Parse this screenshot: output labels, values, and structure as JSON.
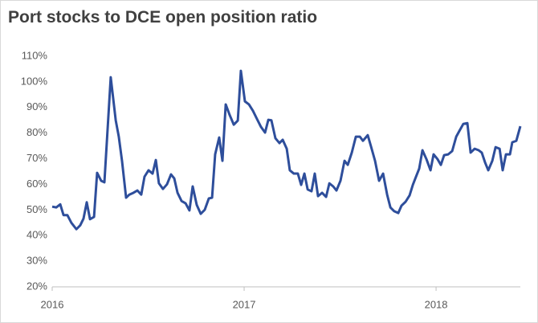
{
  "chart_data": {
    "type": "line",
    "title": "Port stocks to DCE open position ratio",
    "x": [
      2016.0,
      2016.021,
      2016.042,
      2016.059,
      2016.079,
      2016.1,
      2016.126,
      2016.146,
      2016.163,
      2016.18,
      2016.197,
      2016.218,
      2016.234,
      2016.255,
      2016.272,
      2016.305,
      2016.331,
      2016.347,
      2016.364,
      2016.385,
      2016.402,
      2016.423,
      2016.444,
      2016.464,
      2016.481,
      2016.502,
      2016.523,
      2016.54,
      2016.556,
      2016.577,
      2016.598,
      2016.619,
      2016.636,
      2016.653,
      2016.674,
      2016.695,
      2016.715,
      2016.732,
      2016.753,
      2016.774,
      2016.795,
      2016.816,
      2016.833,
      2016.849,
      2016.87,
      2016.887,
      2016.904,
      2016.925,
      2016.946,
      2016.967,
      2016.983,
      2017.004,
      2017.025,
      2017.046,
      2017.067,
      2017.088,
      2017.109,
      2017.126,
      2017.142,
      2017.163,
      2017.184,
      2017.201,
      2017.222,
      2017.238,
      2017.259,
      2017.28,
      2017.297,
      2017.314,
      2017.331,
      2017.351,
      2017.368,
      2017.385,
      2017.406,
      2017.427,
      2017.444,
      2017.464,
      2017.481,
      2017.502,
      2017.523,
      2017.54,
      2017.561,
      2017.582,
      2017.603,
      2017.619,
      2017.644,
      2017.661,
      2017.682,
      2017.703,
      2017.724,
      2017.745,
      2017.762,
      2017.782,
      2017.803,
      2017.82,
      2017.841,
      2017.862,
      2017.879,
      2017.895,
      2017.912,
      2017.929,
      2017.95,
      2017.971,
      2017.987,
      2018.008,
      2018.025,
      2018.042,
      2018.063,
      2018.084,
      2018.105,
      2018.121,
      2018.142,
      2018.163,
      2018.18,
      2018.201,
      2018.222,
      2018.238,
      2018.255,
      2018.272,
      2018.293,
      2018.31,
      2018.331,
      2018.347,
      2018.364,
      2018.385,
      2018.397,
      2018.418,
      2018.439
    ],
    "series": [
      {
        "name": "Port stocks to DCE open position ratio",
        "color": "#2e4e9b",
        "values": [
          51.3,
          51,
          52.2,
          48,
          48,
          45,
          42.5,
          44,
          46.6,
          53,
          46.4,
          47.3,
          64.5,
          61.4,
          60.8,
          101.8,
          85,
          78.6,
          69,
          54.8,
          56,
          56.7,
          57.6,
          56,
          63,
          65.5,
          64.2,
          69.5,
          60.4,
          58.2,
          60,
          63.9,
          62.3,
          56.7,
          53.5,
          52.6,
          49.8,
          59.2,
          52,
          48.5,
          50.1,
          54.5,
          54.8,
          71.7,
          78.3,
          69.2,
          91.2,
          87,
          83.3,
          84.9,
          104.3,
          92.4,
          91.2,
          88.7,
          85.5,
          82.4,
          80.2,
          85.2,
          85,
          78,
          76.1,
          77.4,
          73.9,
          65.5,
          64.2,
          64.2,
          59.8,
          64.2,
          58,
          57.3,
          64.2,
          55.4,
          56.7,
          55.1,
          60.4,
          59.2,
          57.6,
          61.4,
          69.2,
          67.6,
          72.4,
          78.6,
          78.6,
          77,
          79.2,
          74.8,
          69.2,
          61.4,
          64.2,
          56,
          51,
          49.5,
          48.8,
          51.7,
          53.2,
          55.7,
          59.8,
          62.9,
          66.1,
          73.3,
          69.8,
          65.5,
          71.7,
          69.8,
          67.6,
          71.4,
          71.7,
          73,
          78.6,
          80.8,
          83.6,
          83.9,
          72.4,
          73.9,
          73.3,
          72.4,
          68.6,
          65.5,
          69.2,
          74.5,
          73.9,
          65.5,
          71.7,
          71.7,
          76.4,
          77,
          82.7
        ]
      }
    ],
    "xlim": [
      2016,
      2018.439
    ],
    "xticks": [
      2016,
      2017,
      2018
    ],
    "ylim": [
      20,
      110
    ],
    "yticks": [
      {
        "value": 20,
        "label": "20%"
      },
      {
        "value": 30,
        "label": "30%"
      },
      {
        "value": 40,
        "label": "40%"
      },
      {
        "value": 50,
        "label": "50%"
      },
      {
        "value": 60,
        "label": "60%"
      },
      {
        "value": 70,
        "label": "70%"
      },
      {
        "value": 80,
        "label": "80%"
      },
      {
        "value": 90,
        "label": "90%"
      },
      {
        "value": 100,
        "label": "100%"
      },
      {
        "value": 110,
        "label": "110%"
      }
    ],
    "grid": false
  }
}
